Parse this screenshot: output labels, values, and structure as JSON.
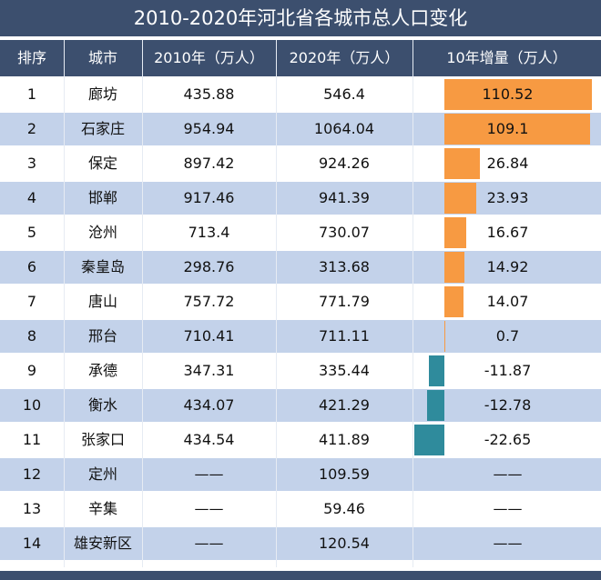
{
  "title": "2010-2020年河北省各城市总人口变化",
  "headers": [
    "排序",
    "城市",
    "2010年（万人）",
    "2020年（万人）",
    "10年增量（万人）"
  ],
  "colors": {
    "header": "#3c4f6e",
    "stripe": "#c3d2ea",
    "positive": "#f79a42",
    "negative": "#2f8b9c"
  },
  "chart_data": {
    "type": "table",
    "columns": [
      "排序",
      "城市",
      "2010年（万人）",
      "2020年（万人）",
      "10年增量（万人）"
    ],
    "increment_scale_max": 110.52,
    "rows": [
      {
        "rank": "1",
        "city": "廊坊",
        "y2010": "435.88",
        "y2020": "546.4",
        "inc": "110.52",
        "inc_value": 110.52
      },
      {
        "rank": "2",
        "city": "石家庄",
        "y2010": "954.94",
        "y2020": "1064.04",
        "inc": "109.1",
        "inc_value": 109.1
      },
      {
        "rank": "3",
        "city": "保定",
        "y2010": "897.42",
        "y2020": "924.26",
        "inc": "26.84",
        "inc_value": 26.84
      },
      {
        "rank": "4",
        "city": "邯郸",
        "y2010": "917.46",
        "y2020": "941.39",
        "inc": "23.93",
        "inc_value": 23.93
      },
      {
        "rank": "5",
        "city": "沧州",
        "y2010": "713.4",
        "y2020": "730.07",
        "inc": "16.67",
        "inc_value": 16.67
      },
      {
        "rank": "6",
        "city": "秦皇岛",
        "y2010": "298.76",
        "y2020": "313.68",
        "inc": "14.92",
        "inc_value": 14.92
      },
      {
        "rank": "7",
        "city": "唐山",
        "y2010": "757.72",
        "y2020": "771.79",
        "inc": "14.07",
        "inc_value": 14.07
      },
      {
        "rank": "8",
        "city": "邢台",
        "y2010": "710.41",
        "y2020": "711.11",
        "inc": "0.7",
        "inc_value": 0.7
      },
      {
        "rank": "9",
        "city": "承德",
        "y2010": "347.31",
        "y2020": "335.44",
        "inc": "-11.87",
        "inc_value": -11.87
      },
      {
        "rank": "10",
        "city": "衡水",
        "y2010": "434.07",
        "y2020": "421.29",
        "inc": "-12.78",
        "inc_value": -12.78
      },
      {
        "rank": "11",
        "city": "张家口",
        "y2010": "434.54",
        "y2020": "411.89",
        "inc": "-22.65",
        "inc_value": -22.65
      },
      {
        "rank": "12",
        "city": "定州",
        "y2010": "——",
        "y2020": "109.59",
        "inc": "——",
        "inc_value": null
      },
      {
        "rank": "13",
        "city": "辛集",
        "y2010": "——",
        "y2020": "59.46",
        "inc": "——",
        "inc_value": null
      },
      {
        "rank": "14",
        "city": "雄安新区",
        "y2010": "——",
        "y2020": "120.54",
        "inc": "——",
        "inc_value": null
      }
    ]
  }
}
